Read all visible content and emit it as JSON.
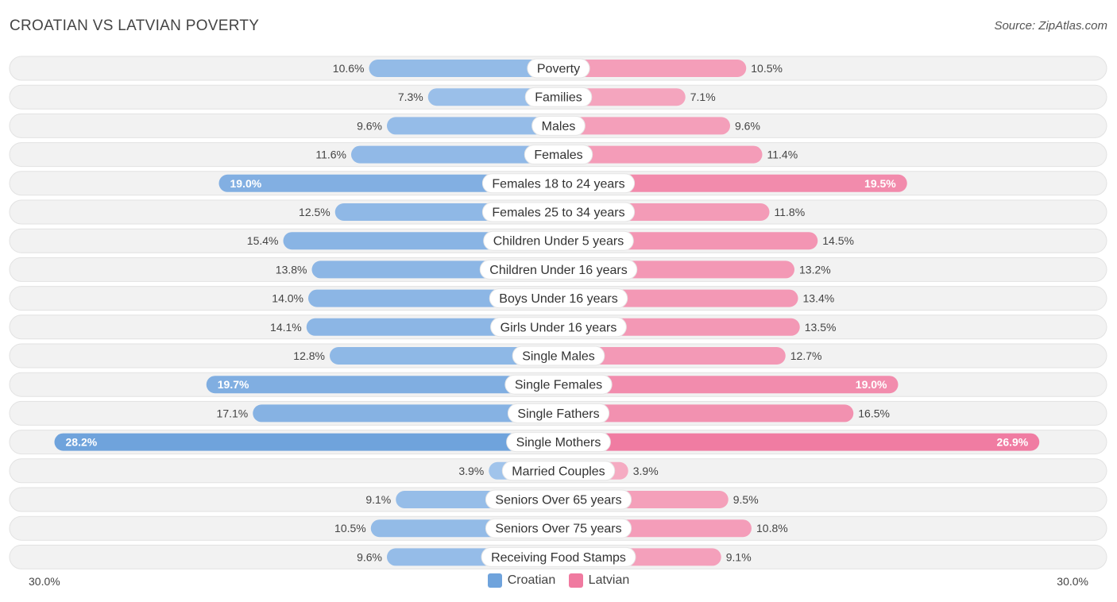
{
  "colors": {
    "croatian": "#6fa3dc",
    "croatian_light": "#a9c9ee",
    "latvian": "#f07aa0",
    "latvian_light": "#f6b3c8",
    "track": "#f0f0f0"
  },
  "chart_data": {
    "type": "bar",
    "orientation": "horizontal-diverging",
    "title": "CROATIAN VS LATVIAN POVERTY",
    "source": "Source: ZipAtlas.com",
    "axis_min_label": "30.0%",
    "axis_max_label": "30.0%",
    "xlim": [
      0,
      30
    ],
    "legend": [
      {
        "name": "Croatian",
        "color": "#6fa3dc"
      },
      {
        "name": "Latvian",
        "color": "#f07aa0"
      }
    ],
    "categories": [
      "Poverty",
      "Families",
      "Males",
      "Females",
      "Females 18 to 24 years",
      "Females 25 to 34 years",
      "Children Under 5 years",
      "Children Under 16 years",
      "Boys Under 16 years",
      "Girls Under 16 years",
      "Single Males",
      "Single Females",
      "Single Fathers",
      "Single Mothers",
      "Married Couples",
      "Seniors Over 65 years",
      "Seniors Over 75 years",
      "Receiving Food Stamps"
    ],
    "series": [
      {
        "name": "Croatian",
        "values": [
          10.6,
          7.3,
          9.6,
          11.6,
          19.0,
          12.5,
          15.4,
          13.8,
          14.0,
          14.1,
          12.8,
          19.7,
          17.1,
          28.2,
          3.9,
          9.1,
          10.5,
          9.6
        ]
      },
      {
        "name": "Latvian",
        "values": [
          10.5,
          7.1,
          9.6,
          11.4,
          19.5,
          11.8,
          14.5,
          13.2,
          13.4,
          13.5,
          12.7,
          19.0,
          16.5,
          26.9,
          3.9,
          9.5,
          10.8,
          9.1
        ]
      }
    ]
  }
}
